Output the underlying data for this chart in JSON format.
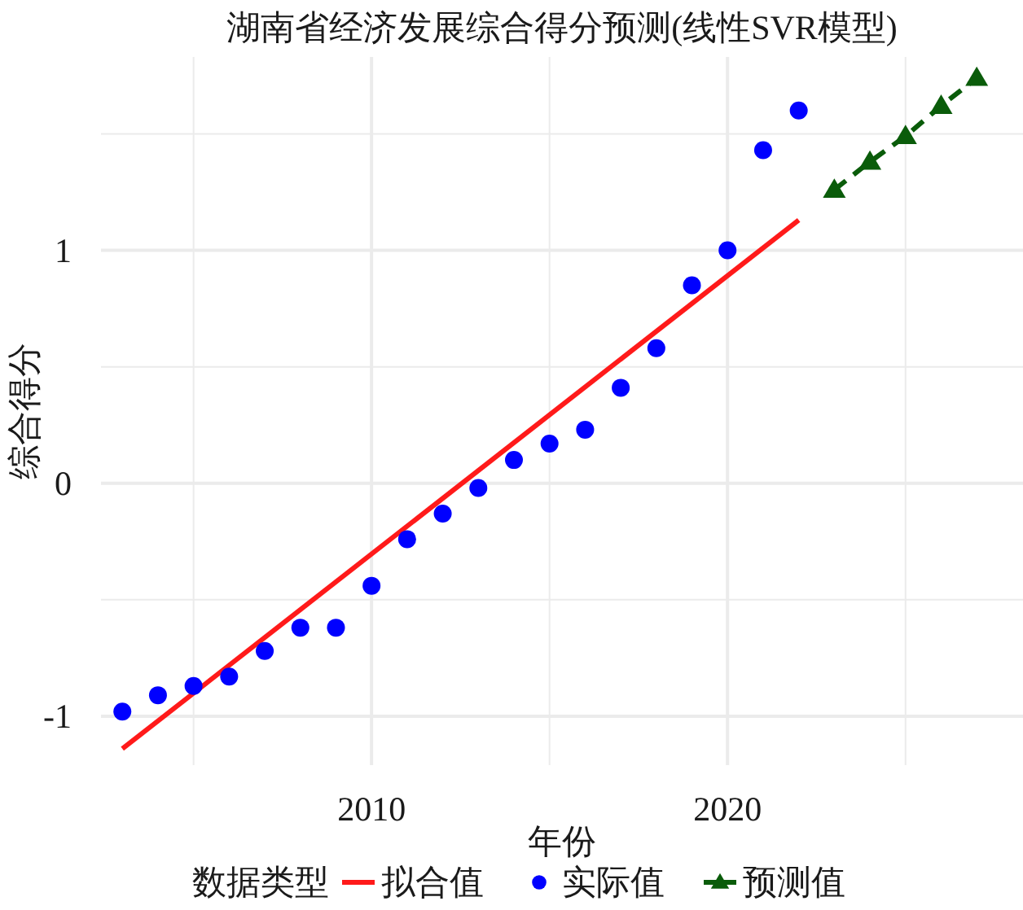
{
  "chart_data": {
    "type": "scatter",
    "title": "湖南省经济发展综合得分预测(线性SVR模型)",
    "xlabel": "年份",
    "ylabel": "综合得分",
    "legend_title": "数据类型",
    "xlim": [
      2002.4,
      2028.3
    ],
    "ylim": [
      -1.21,
      1.83
    ],
    "xticks": [
      {
        "value": 2005,
        "label": null
      },
      2010,
      {
        "value": 2015,
        "label": null
      },
      2020,
      {
        "value": 2025,
        "label": null
      }
    ],
    "yticks": [
      -1,
      {
        "value": -0.5,
        "label": null
      },
      0,
      {
        "value": 0.5,
        "label": null
      },
      1,
      {
        "value": 1.5,
        "label": null
      }
    ],
    "grid": true,
    "legend": "bottom",
    "series": [
      {
        "name": "拟合值",
        "type": "line",
        "color": "#ff1a1a",
        "marker": "none",
        "line_style": "solid",
        "x": [
          2003,
          2022
        ],
        "values": [
          -1.14,
          1.13
        ]
      },
      {
        "name": "实际值",
        "color": "#0000ff",
        "marker": "circle",
        "x": [
          2003,
          2004,
          2005,
          2006,
          2007,
          2008,
          2009,
          2010,
          2011,
          2012,
          2013,
          2014,
          2015,
          2016,
          2017,
          2018,
          2019,
          2020,
          2021,
          2022
        ],
        "values": [
          -0.98,
          -0.91,
          -0.87,
          -0.83,
          -0.72,
          -0.62,
          -0.62,
          -0.44,
          -0.24,
          -0.13,
          -0.02,
          0.1,
          0.17,
          0.23,
          0.41,
          0.58,
          0.85,
          1.0,
          1.43,
          1.6
        ]
      },
      {
        "name": "预测值",
        "type": "line",
        "color": "#0a5c0a",
        "marker": "triangle",
        "line_style": "dashed",
        "x": [
          2023,
          2024,
          2025,
          2026,
          2027
        ],
        "values": [
          1.26,
          1.38,
          1.49,
          1.62,
          1.74
        ]
      }
    ]
  }
}
